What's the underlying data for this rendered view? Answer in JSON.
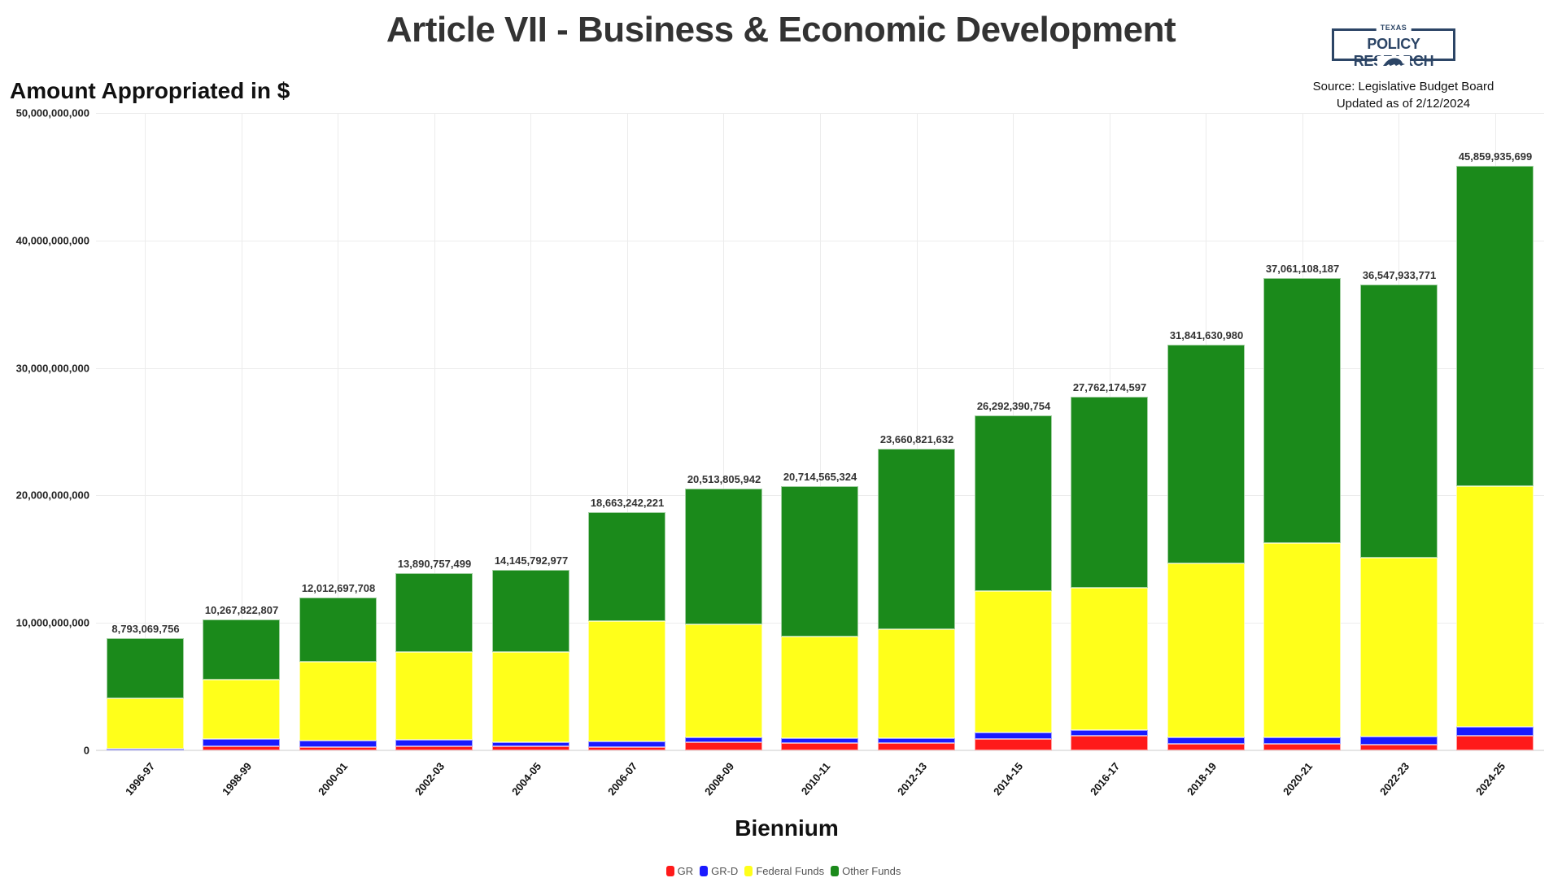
{
  "header": {
    "title": "Article VII - Business & Economic Development",
    "y_axis_title": "Amount Appropriated in $",
    "logo": {
      "top_text": "TEXAS",
      "name": "POLICY RESEARCH",
      "icon": "armadillo-icon"
    },
    "source_line1": "Source: Legislative Budget Board",
    "source_line2": "Updated as of 2/12/2024"
  },
  "colors": {
    "GR": "#ff1a1a",
    "GR-D": "#1a1aff",
    "Federal Funds": "#ffff1a",
    "Other Funds": "#1b8a1b",
    "title": "#333333",
    "logo": "#2c4566"
  },
  "y_ticks": [
    "0",
    "10,000,000,000",
    "20,000,000,000",
    "30,000,000,000",
    "40,000,000,000",
    "50,000,000,000"
  ],
  "x_axis_title": "Biennium",
  "legend": [
    {
      "label": "GR",
      "color": "#ff1a1a"
    },
    {
      "label": "GR-D",
      "color": "#1a1aff"
    },
    {
      "label": "Federal Funds",
      "color": "#ffff1a"
    },
    {
      "label": "Other Funds",
      "color": "#1b8a1b"
    }
  ],
  "chart_data": {
    "type": "bar",
    "stacked": true,
    "title": "Article VII - Business & Economic Development",
    "xlabel": "Biennium",
    "ylabel": "Amount Appropriated in $",
    "ylim": [
      0,
      50000000000
    ],
    "grid": true,
    "legend_position": "bottom",
    "categories": [
      "1996-97",
      "1998-99",
      "2000-01",
      "2002-03",
      "2004-05",
      "2006-07",
      "2008-09",
      "2010-11",
      "2012-13",
      "2014-15",
      "2016-17",
      "2018-19",
      "2020-21",
      "2022-23",
      "2024-25"
    ],
    "totals": [
      8793069756,
      10267822807,
      12012697708,
      13890757499,
      14145792977,
      18663242221,
      20513805942,
      20714565324,
      23660821632,
      26292390754,
      27762174597,
      31841630980,
      37061108187,
      36547933771,
      45859935699
    ],
    "total_labels": [
      "8,793,069,756",
      "10,267,822,807",
      "12,012,697,708",
      "13,890,757,499",
      "14,145,792,977",
      "18,663,242,221",
      "20,513,805,942",
      "20,714,565,324",
      "23,660,821,632",
      "26,292,390,754",
      "27,762,174,597",
      "31,841,630,980",
      "37,061,108,187",
      "36,547,933,771",
      "45,859,935,699"
    ],
    "series": [
      {
        "name": "GR",
        "color": "#ff1a1a",
        "values": [
          100000000,
          320000000,
          260000000,
          320000000,
          300000000,
          250000000,
          620000000,
          550000000,
          570000000,
          910000000,
          1170000000,
          490000000,
          490000000,
          450000000,
          1130000000
        ]
      },
      {
        "name": "GR-D",
        "color": "#1a1aff",
        "values": [
          0,
          570000000,
          510000000,
          480000000,
          360000000,
          430000000,
          420000000,
          430000000,
          370000000,
          470000000,
          440000000,
          530000000,
          550000000,
          630000000,
          720000000
        ]
      },
      {
        "name": "Federal Funds",
        "color": "#ffff1a",
        "values": [
          3980000000,
          4660000000,
          6180000000,
          6920000000,
          7070000000,
          9480000000,
          8860000000,
          7950000000,
          8540000000,
          11100000000,
          11170000000,
          13630000000,
          15220000000,
          14050000000,
          18880000000
        ]
      },
      {
        "name": "Other Funds",
        "color": "#1b8a1b",
        "values": [
          4713069756,
          4717822807,
          5062697708,
          6170757499,
          6415792977,
          8503242221,
          10613805942,
          11784565324,
          14180821632,
          13812390754,
          14982174597,
          17191630980,
          20801108187,
          21417933771,
          25129935699
        ]
      }
    ]
  }
}
